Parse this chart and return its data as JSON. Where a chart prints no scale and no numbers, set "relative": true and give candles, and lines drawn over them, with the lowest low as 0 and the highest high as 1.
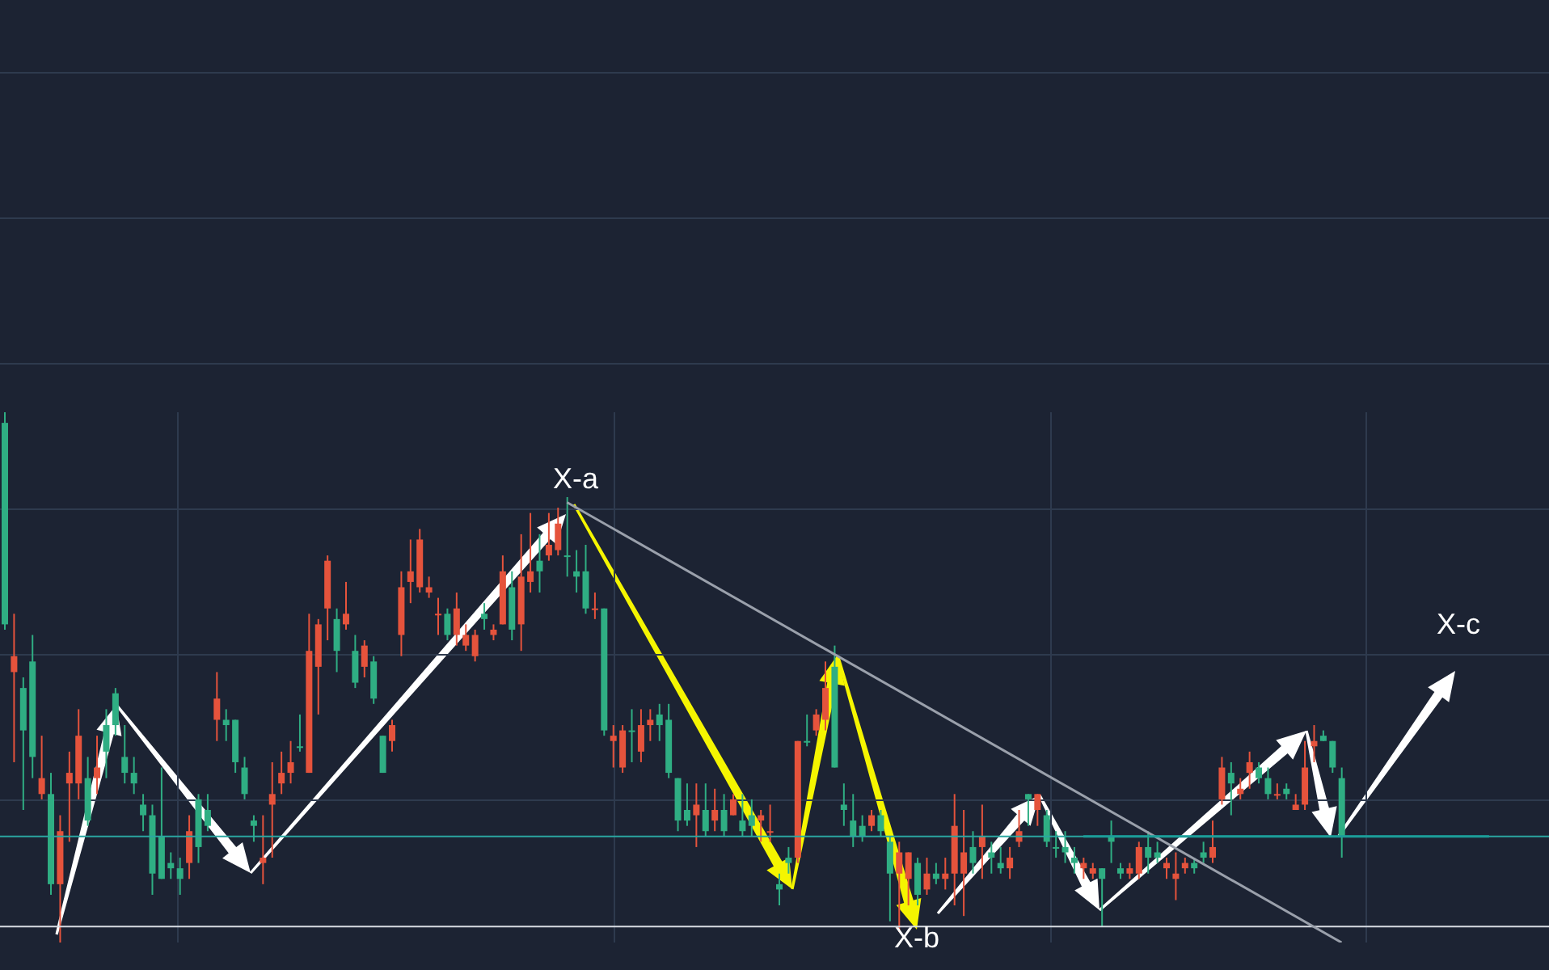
{
  "chart_data": {
    "type": "candlestick",
    "relative": true,
    "grid": true,
    "categories": [
      null,
      null,
      null,
      null,
      null,
      null,
      null,
      null,
      null,
      null,
      null,
      null,
      null,
      null,
      null,
      null,
      null,
      null,
      null,
      null,
      null,
      null,
      null,
      null,
      null,
      null,
      null,
      null,
      null,
      null,
      null,
      null,
      null,
      null,
      null,
      null,
      null,
      null,
      null,
      null,
      null,
      null,
      null,
      null,
      null,
      null,
      null,
      null,
      null,
      null,
      null,
      null,
      null,
      null,
      null,
      null,
      null,
      null,
      null,
      null,
      null,
      null,
      null,
      null,
      null,
      null,
      null,
      null,
      null,
      null,
      null,
      null,
      null,
      null,
      null,
      null,
      null,
      null,
      null,
      null,
      null,
      null,
      null,
      null,
      null,
      null,
      null,
      null,
      null,
      null,
      null,
      null,
      null,
      null,
      null,
      null,
      null,
      null,
      null,
      null,
      null,
      null,
      null,
      null,
      null,
      null,
      null,
      null,
      null,
      null,
      null,
      null,
      null,
      null,
      null,
      null,
      null,
      null,
      null,
      null,
      null,
      null,
      null,
      null,
      null,
      null,
      null,
      null,
      null,
      null,
      null,
      null,
      null,
      null,
      null,
      null,
      null,
      null,
      null,
      null,
      null,
      null,
      null,
      null,
      null,
      null,
      null,
      null,
      null,
      null,
      null,
      null,
      null,
      null,
      null,
      null,
      null,
      null,
      null,
      null,
      null,
      null,
      null,
      null,
      null,
      null,
      null,
      null
    ],
    "ohlc": [
      [
        0.98,
        1.0,
        0.59,
        0.6
      ],
      [
        0.51,
        0.62,
        0.34,
        0.54
      ],
      [
        0.48,
        0.5,
        0.25,
        0.4
      ],
      [
        0.53,
        0.58,
        0.31,
        0.35
      ],
      [
        0.28,
        0.39,
        0.27,
        0.31
      ],
      [
        0.28,
        0.32,
        0.09,
        0.11
      ],
      [
        0.11,
        0.24,
        0.0,
        0.21
      ],
      [
        0.3,
        0.36,
        0.19,
        0.32
      ],
      [
        0.3,
        0.44,
        0.27,
        0.39
      ],
      [
        0.31,
        0.35,
        0.22,
        0.23
      ],
      [
        0.31,
        0.39,
        0.28,
        0.33
      ],
      [
        0.41,
        0.44,
        0.31,
        0.36
      ],
      [
        0.47,
        0.48,
        0.39,
        0.41
      ],
      [
        0.35,
        0.41,
        0.3,
        0.32
      ],
      [
        0.32,
        0.35,
        0.28,
        0.3
      ],
      [
        0.26,
        0.28,
        0.21,
        0.24
      ],
      [
        0.24,
        0.26,
        0.09,
        0.13
      ],
      [
        0.2,
        0.33,
        0.12,
        0.12
      ],
      [
        0.15,
        0.17,
        0.12,
        0.14
      ],
      [
        0.14,
        0.16,
        0.09,
        0.12
      ],
      [
        0.15,
        0.24,
        0.12,
        0.21
      ],
      [
        0.27,
        0.28,
        0.15,
        0.18
      ],
      [
        0.25,
        0.28,
        0.21,
        0.22
      ],
      [
        0.42,
        0.51,
        0.38,
        0.46
      ],
      [
        0.42,
        0.44,
        0.38,
        0.41
      ],
      [
        0.42,
        0.42,
        0.32,
        0.34
      ],
      [
        0.33,
        0.35,
        0.27,
        0.28
      ],
      [
        0.23,
        0.24,
        0.19,
        0.22
      ],
      [
        0.15,
        0.24,
        0.11,
        0.16
      ],
      [
        0.26,
        0.34,
        0.16,
        0.28
      ],
      [
        0.3,
        0.36,
        0.28,
        0.32
      ],
      [
        0.32,
        0.38,
        0.3,
        0.34
      ],
      [
        0.37,
        0.43,
        0.36,
        0.37
      ],
      [
        0.32,
        0.62,
        0.32,
        0.55
      ],
      [
        0.52,
        0.61,
        0.43,
        0.6
      ],
      [
        0.63,
        0.73,
        0.57,
        0.72
      ],
      [
        0.61,
        0.63,
        0.51,
        0.55
      ],
      [
        0.6,
        0.68,
        0.59,
        0.62
      ],
      [
        0.55,
        0.58,
        0.48,
        0.49
      ],
      [
        0.52,
        0.57,
        0.5,
        0.56
      ],
      [
        0.53,
        0.54,
        0.45,
        0.46
      ],
      [
        0.39,
        0.39,
        0.32,
        0.32
      ],
      [
        0.38,
        0.42,
        0.36,
        0.41
      ],
      [
        0.58,
        0.7,
        0.54,
        0.67
      ],
      [
        0.68,
        0.76,
        0.64,
        0.7
      ],
      [
        0.67,
        0.78,
        0.66,
        0.76
      ],
      [
        0.66,
        0.69,
        0.65,
        0.67
      ],
      [
        0.62,
        0.65,
        0.58,
        0.62
      ],
      [
        0.62,
        0.63,
        0.57,
        0.58
      ],
      [
        0.58,
        0.66,
        0.56,
        0.63
      ],
      [
        0.56,
        0.6,
        0.55,
        0.58
      ],
      [
        0.54,
        0.59,
        0.53,
        0.58
      ],
      [
        0.62,
        0.64,
        0.59,
        0.61
      ],
      [
        0.58,
        0.6,
        0.57,
        0.59
      ],
      [
        0.6,
        0.73,
        0.6,
        0.7
      ],
      [
        0.67,
        0.7,
        0.57,
        0.59
      ],
      [
        0.6,
        0.77,
        0.55,
        0.69
      ],
      [
        0.68,
        0.81,
        0.66,
        0.7
      ],
      [
        0.72,
        0.77,
        0.66,
        0.7
      ],
      [
        0.73,
        0.81,
        0.72,
        0.75
      ],
      [
        0.74,
        0.82,
        0.73,
        0.79
      ],
      [
        0.73,
        0.84,
        0.69,
        0.73
      ],
      [
        0.7,
        0.74,
        0.66,
        0.69
      ],
      [
        0.7,
        0.75,
        0.62,
        0.63
      ],
      [
        0.63,
        0.66,
        0.61,
        0.63
      ],
      [
        0.63,
        0.63,
        0.39,
        0.4
      ],
      [
        0.38,
        0.41,
        0.33,
        0.39
      ],
      [
        0.33,
        0.41,
        0.32,
        0.4
      ],
      [
        0.4,
        0.44,
        0.34,
        0.4
      ],
      [
        0.36,
        0.44,
        0.34,
        0.41
      ],
      [
        0.41,
        0.44,
        0.38,
        0.42
      ],
      [
        0.43,
        0.45,
        0.38,
        0.41
      ],
      [
        0.42,
        0.45,
        0.31,
        0.32
      ],
      [
        0.31,
        0.31,
        0.21,
        0.23
      ],
      [
        0.25,
        0.3,
        0.22,
        0.23
      ],
      [
        0.24,
        0.3,
        0.18,
        0.26
      ],
      [
        0.25,
        0.3,
        0.2,
        0.21
      ],
      [
        0.23,
        0.29,
        0.21,
        0.25
      ],
      [
        0.25,
        0.28,
        0.2,
        0.21
      ],
      [
        0.24,
        0.28,
        0.24,
        0.27
      ],
      [
        0.23,
        0.28,
        0.2,
        0.21
      ],
      [
        0.24,
        0.27,
        0.2,
        0.22
      ],
      [
        0.23,
        0.25,
        0.19,
        0.24
      ],
      [
        0.21,
        0.26,
        0.19,
        0.21
      ],
      [
        0.11,
        0.13,
        0.07,
        0.1
      ],
      [
        0.16,
        0.18,
        0.13,
        0.15
      ],
      [
        0.16,
        0.38,
        0.15,
        0.38
      ],
      [
        0.38,
        0.43,
        0.37,
        0.38
      ],
      [
        0.4,
        0.44,
        0.39,
        0.43
      ],
      [
        0.42,
        0.53,
        0.4,
        0.48
      ],
      [
        0.52,
        0.56,
        0.33,
        0.33
      ],
      [
        0.26,
        0.3,
        0.22,
        0.25
      ],
      [
        0.23,
        0.28,
        0.18,
        0.2
      ],
      [
        0.22,
        0.24,
        0.19,
        0.2
      ],
      [
        0.22,
        0.25,
        0.21,
        0.24
      ],
      [
        0.24,
        0.25,
        0.2,
        0.21
      ],
      [
        0.19,
        0.2,
        0.04,
        0.13
      ],
      [
        0.13,
        0.19,
        0.02,
        0.17
      ],
      [
        0.12,
        0.17,
        0.07,
        0.17
      ],
      [
        0.15,
        0.16,
        0.07,
        0.09
      ],
      [
        0.1,
        0.16,
        0.09,
        0.13
      ],
      [
        0.13,
        0.15,
        0.11,
        0.12
      ],
      [
        0.12,
        0.16,
        0.1,
        0.13
      ],
      [
        0.13,
        0.28,
        0.07,
        0.22
      ],
      [
        0.13,
        0.25,
        0.05,
        0.17
      ],
      [
        0.18,
        0.21,
        0.13,
        0.15
      ],
      [
        0.18,
        0.26,
        0.12,
        0.2
      ],
      [
        0.17,
        0.19,
        0.13,
        0.16
      ],
      [
        0.15,
        0.18,
        0.13,
        0.14
      ],
      [
        0.14,
        0.18,
        0.12,
        0.16
      ],
      [
        0.19,
        0.25,
        0.18,
        0.21
      ],
      [
        0.28,
        0.28,
        0.22,
        0.27
      ],
      [
        0.25,
        0.28,
        0.22,
        0.28
      ],
      [
        0.24,
        0.25,
        0.18,
        0.19
      ],
      [
        0.18,
        0.21,
        0.16,
        0.18
      ],
      [
        0.18,
        0.21,
        0.15,
        0.17
      ],
      [
        0.16,
        0.18,
        0.13,
        0.15
      ],
      [
        0.14,
        0.16,
        0.12,
        0.15
      ],
      [
        0.13,
        0.15,
        0.12,
        0.14
      ],
      [
        0.14,
        0.14,
        0.03,
        0.12
      ],
      [
        0.2,
        0.23,
        0.15,
        0.19
      ],
      [
        0.14,
        0.15,
        0.12,
        0.13
      ],
      [
        0.13,
        0.15,
        0.12,
        0.14
      ],
      [
        0.13,
        0.19,
        0.12,
        0.18
      ],
      [
        0.18,
        0.21,
        0.13,
        0.16
      ],
      [
        0.17,
        0.19,
        0.15,
        0.16
      ],
      [
        0.14,
        0.16,
        0.12,
        0.15
      ],
      [
        0.12,
        0.17,
        0.08,
        0.13
      ],
      [
        0.14,
        0.16,
        0.13,
        0.15
      ],
      [
        0.15,
        0.16,
        0.13,
        0.14
      ],
      [
        0.17,
        0.19,
        0.15,
        0.16
      ],
      [
        0.16,
        0.23,
        0.15,
        0.18
      ],
      [
        0.27,
        0.35,
        0.26,
        0.33
      ],
      [
        0.32,
        0.34,
        0.24,
        0.3
      ],
      [
        0.28,
        0.31,
        0.27,
        0.29
      ],
      [
        0.32,
        0.36,
        0.29,
        0.34
      ],
      [
        0.33,
        0.34,
        0.3,
        0.31
      ],
      [
        0.31,
        0.33,
        0.27,
        0.28
      ],
      [
        0.28,
        0.3,
        0.27,
        0.28
      ],
      [
        0.29,
        0.3,
        0.27,
        0.28
      ],
      [
        0.25,
        0.28,
        0.25,
        0.26
      ],
      [
        0.26,
        0.38,
        0.25,
        0.33
      ],
      [
        0.37,
        0.41,
        0.34,
        0.38
      ],
      [
        0.39,
        0.4,
        0.38,
        0.38
      ],
      [
        0.38,
        0.38,
        0.32,
        0.33
      ],
      [
        0.31,
        0.33,
        0.16,
        0.2
      ],
      null,
      null,
      null,
      null,
      null,
      null,
      null,
      null,
      null,
      null,
      null,
      null,
      null,
      null,
      null,
      null,
      null,
      null,
      null,
      null,
      null,
      null
    ],
    "colors": [
      "#2fae83",
      "#e5533c",
      "#2fae83",
      "#2fae83",
      "#e5533c",
      "#2fae83",
      "#e5533c",
      "#e5533c",
      "#e5533c",
      "#2fae83",
      "#e5533c",
      "#2fae83",
      "#2fae83",
      "#2fae83",
      "#2fae83",
      "#2fae83",
      "#2fae83",
      "#2fae83",
      "#2fae83",
      "#2fae83",
      "#e5533c",
      "#2fae83",
      "#2fae83",
      "#e5533c",
      "#2fae83",
      "#2fae83",
      "#2fae83",
      "#2fae83",
      "#e5533c",
      "#e5533c",
      "#e5533c",
      "#e5533c",
      "#2fae83",
      "#e5533c",
      "#e5533c",
      "#e5533c",
      "#2fae83",
      "#e5533c",
      "#2fae83",
      "#e5533c",
      "#2fae83",
      "#2fae83",
      "#e5533c",
      "#e5533c",
      "#e5533c",
      "#e5533c",
      "#e5533c",
      "#e5533c",
      "#2fae83",
      "#e5533c",
      "#e5533c",
      "#e5533c",
      "#2fae83",
      "#e5533c",
      "#e5533c",
      "#2fae83",
      "#e5533c",
      "#e5533c",
      "#2fae83",
      "#e5533c",
      "#e5533c",
      "#2fae83",
      "#2fae83",
      "#2fae83",
      "#e5533c",
      "#2fae83",
      "#e5533c",
      "#e5533c",
      "#2fae83",
      "#e5533c",
      "#e5533c",
      "#2fae83",
      "#2fae83",
      "#2fae83",
      "#2fae83",
      "#e5533c",
      "#2fae83",
      "#e5533c",
      "#2fae83",
      "#e5533c",
      "#2fae83",
      "#2fae83",
      "#e5533c",
      "#e5533c",
      "#2fae83",
      "#2fae83",
      "#e5533c",
      "#2fae83",
      "#e5533c",
      "#e5533c",
      "#2fae83",
      "#2fae83",
      "#2fae83",
      "#2fae83",
      "#e5533c",
      "#2fae83",
      "#2fae83",
      "#e5533c",
      "#e5533c",
      "#2fae83",
      "#e5533c",
      "#2fae83",
      "#e5533c",
      "#e5533c",
      "#e5533c",
      "#2fae83",
      "#e5533c",
      "#2fae83",
      "#2fae83",
      "#e5533c",
      "#e5533c",
      "#2fae83",
      "#e5533c",
      "#2fae83",
      "#2fae83",
      "#2fae83",
      "#2fae83",
      "#e5533c",
      "#e5533c",
      "#2fae83",
      "#2fae83",
      "#2fae83",
      "#e5533c",
      "#e5533c",
      "#2fae83",
      "#2fae83",
      "#e5533c",
      "#e5533c",
      "#e5533c",
      "#2fae83",
      "#2fae83",
      "#e5533c",
      "#e5533c",
      "#2fae83",
      "#e5533c",
      "#e5533c",
      "#2fae83",
      "#2fae83",
      "#e5533c",
      "#2fae83",
      "#e5533c",
      "#e5533c",
      "#e5533c",
      "#2fae83",
      "#2fae83",
      "#2fae83",
      null,
      null,
      null,
      null,
      null,
      null,
      null,
      null,
      null,
      null,
      null,
      null,
      null,
      null,
      null,
      null,
      null,
      null,
      null,
      null,
      null,
      null
    ],
    "series": [
      {
        "type": "line",
        "color": "#9aa0ab",
        "values": [
          null,
          null,
          null,
          null,
          null,
          null,
          null,
          null,
          null,
          null,
          null,
          null,
          null,
          null,
          null,
          null,
          null,
          null,
          null,
          null,
          null,
          null,
          null,
          null,
          null,
          null,
          null,
          null,
          null,
          null,
          null,
          null,
          null,
          null,
          null,
          null,
          null,
          null,
          null,
          null,
          null,
          null,
          null,
          null,
          null,
          null,
          null,
          null,
          null,
          null,
          null,
          null,
          null,
          null,
          null,
          null,
          null,
          null,
          null,
          null,
          null,
          0.83,
          null,
          null,
          null,
          null,
          null,
          null,
          null,
          null,
          null,
          null,
          null,
          null,
          null,
          null,
          null,
          null,
          null,
          null,
          null,
          null,
          null,
          null,
          null,
          null,
          null,
          null,
          null,
          null,
          null,
          null,
          null,
          null,
          null,
          null,
          null,
          null,
          null,
          null,
          null,
          null,
          null,
          null,
          null,
          null,
          null,
          null,
          null,
          null,
          null,
          null,
          null,
          null,
          null,
          null,
          null,
          null,
          null,
          null,
          null,
          null,
          null,
          null,
          null,
          null,
          null,
          null,
          null,
          null,
          null,
          null,
          null,
          null,
          null,
          null,
          null,
          null,
          null,
          null,
          null,
          null,
          null,
          null,
          null,
          0.0,
          null,
          null,
          null,
          null,
          null,
          null,
          null,
          null,
          null,
          null,
          null,
          null,
          null,
          null,
          null,
          null,
          null,
          null,
          null,
          null,
          null,
          null
        ]
      },
      {
        "type": "line",
        "color": "#1b9e9a",
        "values": [
          null,
          null,
          null,
          null,
          null,
          null,
          null,
          null,
          null,
          null,
          null,
          null,
          null,
          null,
          null,
          null,
          null,
          null,
          null,
          null,
          null,
          null,
          null,
          null,
          null,
          null,
          null,
          null,
          null,
          null,
          null,
          null,
          null,
          null,
          null,
          null,
          null,
          null,
          null,
          null,
          null,
          null,
          null,
          null,
          null,
          null,
          null,
          null,
          null,
          null,
          null,
          null,
          null,
          null,
          null,
          null,
          null,
          null,
          null,
          null,
          null,
          null,
          null,
          null,
          null,
          null,
          null,
          null,
          null,
          null,
          null,
          null,
          null,
          null,
          null,
          null,
          null,
          null,
          null,
          null,
          null,
          null,
          null,
          null,
          null,
          null,
          null,
          null,
          null,
          null,
          null,
          null,
          null,
          null,
          null,
          null,
          null,
          null,
          null,
          null,
          null,
          null,
          null,
          null,
          null,
          null,
          null,
          null,
          null,
          null,
          null,
          null,
          null,
          null,
          null,
          null,
          null,
          0.2,
          null,
          null,
          null,
          null,
          null,
          null,
          null,
          null,
          null,
          null,
          null,
          null,
          null,
          null,
          null,
          null,
          null,
          null,
          null,
          null,
          null,
          null,
          null,
          null,
          null,
          null,
          null,
          null,
          null,
          null,
          null,
          null,
          null,
          null,
          null,
          null,
          null,
          null,
          null,
          null,
          null,
          null,
          null,
          0.2,
          null,
          null,
          null,
          null,
          null,
          null
        ]
      }
    ],
    "ref_lines": [
      {
        "axis": "y",
        "value": 0.03,
        "color": "#d8dce3"
      },
      {
        "axis": "y",
        "value": 0.2,
        "color": "#2aa6a0"
      }
    ],
    "annotations": [
      "X-a",
      "X-b",
      "X-c"
    ]
  }
}
